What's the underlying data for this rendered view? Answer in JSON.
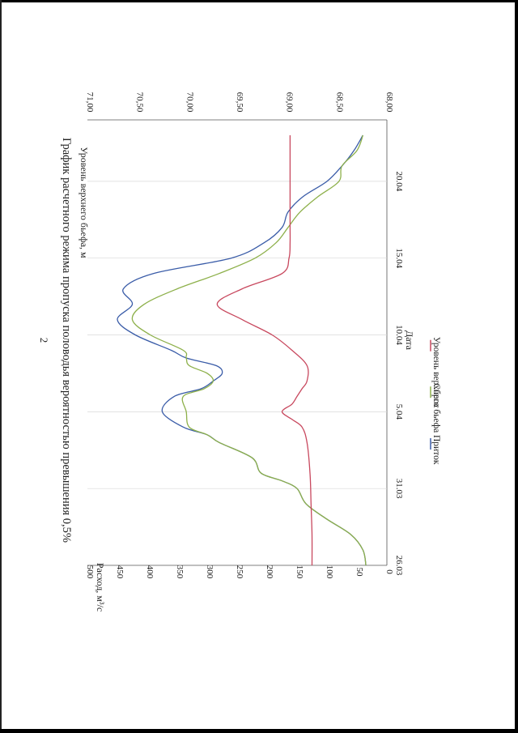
{
  "page_number": "2",
  "chart_data": {
    "type": "line",
    "title": "График расчетного режима пропуска половодья вероятностью превышения 0,5%",
    "xlabel": "Дата",
    "ylabel_left": "Расход, м³/с",
    "ylabel_right": "Уровень верхнего бьефа, м",
    "x_ticks": [
      "26.03",
      "31.03",
      "5.04",
      "10.04",
      "15.04",
      "20.04"
    ],
    "x_range_days": [
      0,
      29
    ],
    "ylim_left": [
      0,
      500
    ],
    "y_ticks_left": [
      "0",
      "50",
      "100",
      "150",
      "200",
      "250",
      "300",
      "350",
      "400",
      "450",
      "500"
    ],
    "ylim_right": [
      68.0,
      71.0
    ],
    "y_ticks_right": [
      "68,00",
      "68,50",
      "69,00",
      "69,50",
      "70,00",
      "70,50",
      "71,00"
    ],
    "grid": "vertical",
    "legend_position": "bottom",
    "series": [
      {
        "name": "Приток",
        "axis": "left",
        "color": "#3a5ca8",
        "x": [
          0,
          1,
          2,
          3,
          4,
          5,
          5.5,
          6,
          7,
          8,
          8.5,
          9,
          10,
          11,
          11.5,
          12,
          12.5,
          13,
          13.5,
          14,
          15,
          16,
          17,
          18,
          19,
          20,
          21,
          22,
          23,
          24,
          25,
          26,
          27,
          28
        ],
        "y": [
          35,
          40,
          60,
          100,
          135,
          150,
          175,
          210,
          225,
          280,
          300,
          340,
          375,
          355,
          310,
          290,
          275,
          285,
          335,
          360,
          420,
          450,
          425,
          440,
          390,
          260,
          205,
          175,
          165,
          140,
          100,
          75,
          55,
          40
        ]
      },
      {
        "name": "Сброс",
        "axis": "left",
        "color": "#8db04a",
        "x": [
          0,
          1,
          2,
          3,
          4,
          5,
          5.5,
          6,
          7,
          8,
          8.5,
          9,
          10,
          11,
          11.5,
          12,
          12.5,
          13,
          13.5,
          14,
          15,
          16,
          17,
          18,
          19,
          20,
          21,
          22,
          23,
          24,
          25,
          26,
          27,
          28
        ],
        "y": [
          35,
          40,
          60,
          100,
          135,
          150,
          175,
          210,
          225,
          280,
          300,
          330,
          335,
          340,
          305,
          290,
          300,
          330,
          335,
          340,
          395,
          425,
          405,
          350,
          280,
          220,
          185,
          165,
          145,
          115,
          80,
          75,
          50,
          40
        ]
      },
      {
        "name": "Уровень верхнего бьефа",
        "axis": "right",
        "color": "#c8485e",
        "x": [
          0,
          2,
          4,
          6,
          8,
          9,
          9.5,
          10,
          10.5,
          11,
          11.5,
          12,
          13,
          14,
          15,
          16,
          17,
          18,
          19,
          20,
          21,
          22,
          23,
          24,
          25,
          26,
          27,
          28
        ],
        "y": [
          68.75,
          68.75,
          68.76,
          68.77,
          68.8,
          68.85,
          68.95,
          69.05,
          68.95,
          68.9,
          68.85,
          68.8,
          68.8,
          68.95,
          69.15,
          69.45,
          69.7,
          69.45,
          69.05,
          68.98,
          68.97,
          68.97,
          68.97,
          68.97,
          68.97,
          68.97,
          68.97,
          68.97
        ]
      }
    ]
  }
}
